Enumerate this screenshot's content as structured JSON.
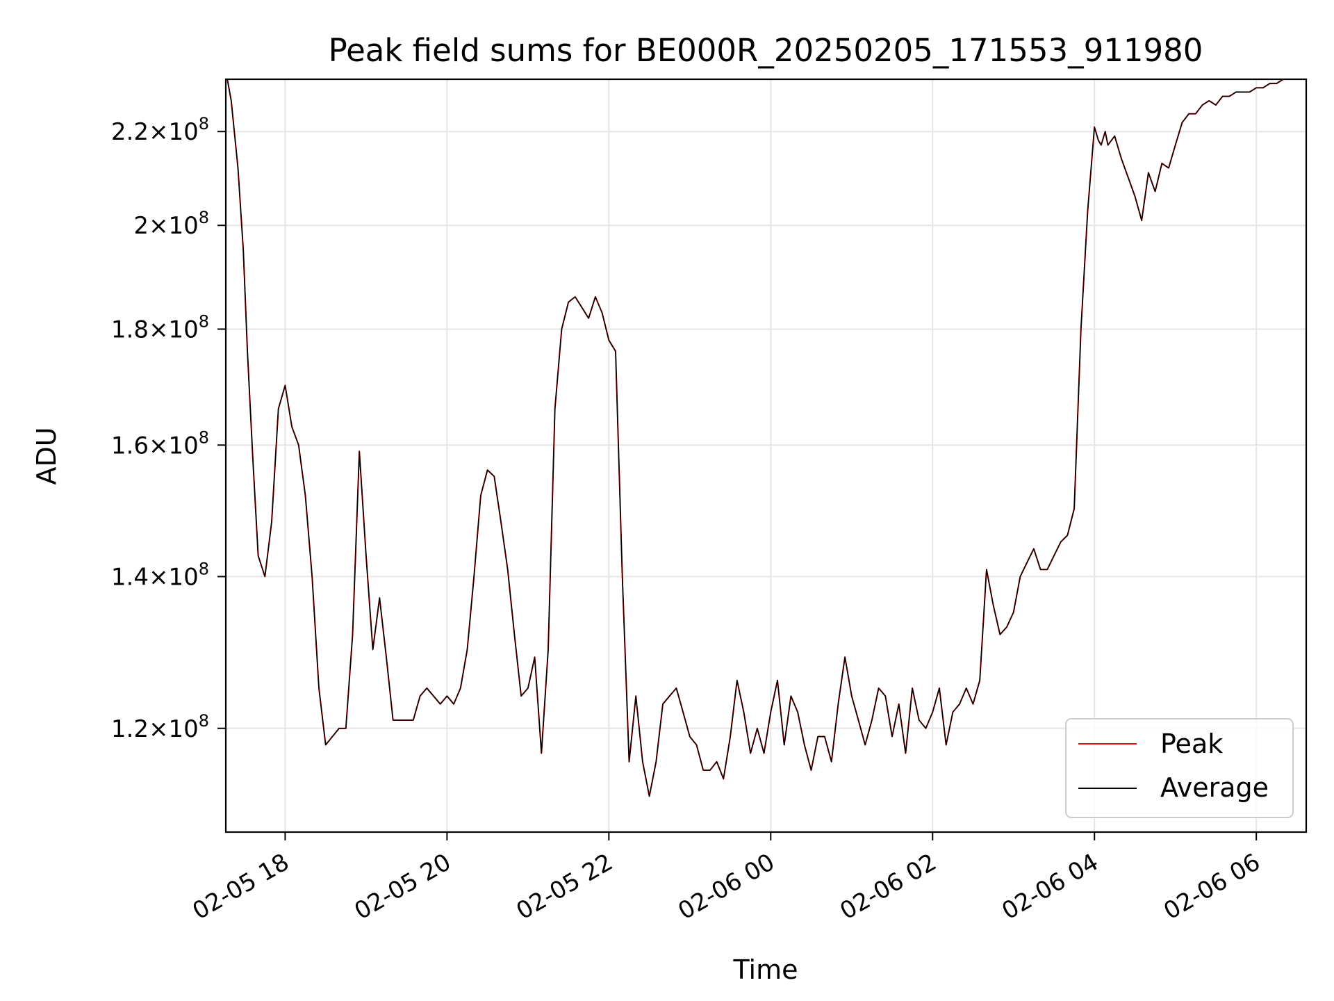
{
  "chart_data": {
    "type": "line",
    "title": "Peak field sums for BE000R_20250205_171553_911980",
    "xlabel": "Time",
    "ylabel": "ADU",
    "x_scale": "time",
    "y_scale": "log",
    "xlim": [
      "2025-02-05 17:16",
      "2025-02-06 06:37"
    ],
    "ylim": [
      108000000,
      232000000
    ],
    "x_ticks": [
      {
        "value": "2025-02-05 18:00",
        "label": "02-05 18"
      },
      {
        "value": "2025-02-05 20:00",
        "label": "02-05 20"
      },
      {
        "value": "2025-02-05 22:00",
        "label": "02-05 22"
      },
      {
        "value": "2025-02-06 00:00",
        "label": "02-06 00"
      },
      {
        "value": "2025-02-06 02:00",
        "label": "02-06 02"
      },
      {
        "value": "2025-02-06 04:00",
        "label": "02-06 04"
      },
      {
        "value": "2025-02-06 06:00",
        "label": "02-06 06"
      }
    ],
    "y_ticks": [
      {
        "value": 120000000,
        "mantissa": "1.2",
        "exponent": "8"
      },
      {
        "value": 140000000,
        "mantissa": "1.4",
        "exponent": "8"
      },
      {
        "value": 160000000,
        "mantissa": "1.6",
        "exponent": "8"
      },
      {
        "value": 180000000,
        "mantissa": "1.8",
        "exponent": "8"
      },
      {
        "value": 200000000,
        "mantissa": "2",
        "exponent": "8"
      },
      {
        "value": 220000000,
        "mantissa": "2.2",
        "exponent": "8"
      }
    ],
    "times_symbol": "×",
    "tick_base": "10",
    "grid": true,
    "legend_position": "lower right",
    "series": [
      {
        "name": "Peak",
        "color": "#ff0000"
      },
      {
        "name": "Average",
        "color": "#000000"
      }
    ],
    "x": [
      "2025-02-05 17:16",
      "2025-02-05 17:20",
      "2025-02-05 17:25",
      "2025-02-05 17:29",
      "2025-02-05 17:32",
      "2025-02-05 17:36",
      "2025-02-05 17:40",
      "2025-02-05 17:45",
      "2025-02-05 17:50",
      "2025-02-05 17:55",
      "2025-02-05 18:00",
      "2025-02-05 18:05",
      "2025-02-05 18:10",
      "2025-02-05 18:15",
      "2025-02-05 18:20",
      "2025-02-05 18:25",
      "2025-02-05 18:30",
      "2025-02-05 18:35",
      "2025-02-05 18:40",
      "2025-02-05 18:45",
      "2025-02-05 18:50",
      "2025-02-05 18:55",
      "2025-02-05 19:00",
      "2025-02-05 19:05",
      "2025-02-05 19:10",
      "2025-02-05 19:15",
      "2025-02-05 19:20",
      "2025-02-05 19:25",
      "2025-02-05 19:30",
      "2025-02-05 19:35",
      "2025-02-05 19:40",
      "2025-02-05 19:45",
      "2025-02-05 19:50",
      "2025-02-05 19:55",
      "2025-02-05 20:00",
      "2025-02-05 20:05",
      "2025-02-05 20:10",
      "2025-02-05 20:15",
      "2025-02-05 20:20",
      "2025-02-05 20:25",
      "2025-02-05 20:30",
      "2025-02-05 20:35",
      "2025-02-05 20:40",
      "2025-02-05 20:45",
      "2025-02-05 20:50",
      "2025-02-05 20:55",
      "2025-02-05 21:00",
      "2025-02-05 21:05",
      "2025-02-05 21:10",
      "2025-02-05 21:15",
      "2025-02-05 21:20",
      "2025-02-05 21:25",
      "2025-02-05 21:30",
      "2025-02-05 21:35",
      "2025-02-05 21:40",
      "2025-02-05 21:45",
      "2025-02-05 21:50",
      "2025-02-05 21:55",
      "2025-02-05 22:00",
      "2025-02-05 22:05",
      "2025-02-05 22:10",
      "2025-02-05 22:15",
      "2025-02-05 22:20",
      "2025-02-05 22:25",
      "2025-02-05 22:30",
      "2025-02-05 22:35",
      "2025-02-05 22:40",
      "2025-02-05 22:45",
      "2025-02-05 22:50",
      "2025-02-05 22:55",
      "2025-02-05 23:00",
      "2025-02-05 23:05",
      "2025-02-05 23:10",
      "2025-02-05 23:15",
      "2025-02-05 23:20",
      "2025-02-05 23:25",
      "2025-02-05 23:30",
      "2025-02-05 23:35",
      "2025-02-05 23:40",
      "2025-02-05 23:45",
      "2025-02-05 23:50",
      "2025-02-05 23:55",
      "2025-02-06 00:00",
      "2025-02-06 00:05",
      "2025-02-06 00:10",
      "2025-02-06 00:15",
      "2025-02-06 00:20",
      "2025-02-06 00:25",
      "2025-02-06 00:30",
      "2025-02-06 00:35",
      "2025-02-06 00:40",
      "2025-02-06 00:45",
      "2025-02-06 00:50",
      "2025-02-06 00:55",
      "2025-02-06 01:00",
      "2025-02-06 01:05",
      "2025-02-06 01:10",
      "2025-02-06 01:15",
      "2025-02-06 01:20",
      "2025-02-06 01:25",
      "2025-02-06 01:30",
      "2025-02-06 01:35",
      "2025-02-06 01:40",
      "2025-02-06 01:45",
      "2025-02-06 01:50",
      "2025-02-06 01:55",
      "2025-02-06 02:00",
      "2025-02-06 02:05",
      "2025-02-06 02:10",
      "2025-02-06 02:15",
      "2025-02-06 02:20",
      "2025-02-06 02:25",
      "2025-02-06 02:30",
      "2025-02-06 02:35",
      "2025-02-06 02:40",
      "2025-02-06 02:45",
      "2025-02-06 02:50",
      "2025-02-06 02:55",
      "2025-02-06 03:00",
      "2025-02-06 03:05",
      "2025-02-06 03:10",
      "2025-02-06 03:15",
      "2025-02-06 03:20",
      "2025-02-06 03:25",
      "2025-02-06 03:30",
      "2025-02-06 03:35",
      "2025-02-06 03:40",
      "2025-02-06 03:45",
      "2025-02-06 03:50",
      "2025-02-06 03:55",
      "2025-02-06 04:00",
      "2025-02-06 04:03",
      "2025-02-06 04:05",
      "2025-02-06 04:08",
      "2025-02-06 04:10",
      "2025-02-06 04:15",
      "2025-02-06 04:20",
      "2025-02-06 04:25",
      "2025-02-06 04:30",
      "2025-02-06 04:35",
      "2025-02-06 04:40",
      "2025-02-06 04:45",
      "2025-02-06 04:50",
      "2025-02-06 04:55",
      "2025-02-06 05:00",
      "2025-02-06 05:05",
      "2025-02-06 05:10",
      "2025-02-06 05:15",
      "2025-02-06 05:20",
      "2025-02-06 05:25",
      "2025-02-06 05:30",
      "2025-02-06 05:35",
      "2025-02-06 05:40",
      "2025-02-06 05:45",
      "2025-02-06 05:50",
      "2025-02-06 05:55",
      "2025-02-06 06:00",
      "2025-02-06 06:05",
      "2025-02-06 06:10",
      "2025-02-06 06:15",
      "2025-02-06 06:20",
      "2025-02-06 06:25",
      "2025-02-06 06:30",
      "2025-02-06 06:37"
    ],
    "values": [
      234000000,
      227000000,
      212000000,
      195000000,
      176000000,
      158000000,
      143000000,
      140000000,
      148000000,
      166000000,
      170000000,
      163000000,
      160000000,
      152000000,
      140000000,
      125000000,
      118000000,
      119000000,
      120000000,
      120000000,
      132000000,
      159000000,
      143000000,
      130000000,
      137000000,
      129000000,
      121000000,
      121000000,
      121000000,
      121000000,
      124000000,
      125000000,
      124000000,
      123000000,
      124000000,
      123000000,
      125000000,
      130000000,
      140000000,
      152000000,
      156000000,
      155000000,
      148000000,
      141000000,
      132000000,
      124000000,
      125000000,
      129000000,
      117000000,
      130000000,
      166000000,
      180000000,
      185000000,
      186000000,
      184000000,
      182000000,
      186000000,
      183000000,
      178000000,
      176000000,
      140000000,
      116000000,
      124000000,
      116000000,
      112000000,
      116000000,
      123000000,
      124000000,
      125000000,
      122000000,
      119000000,
      118000000,
      115000000,
      115000000,
      116000000,
      114000000,
      119000000,
      126000000,
      122000000,
      117000000,
      120000000,
      117000000,
      122000000,
      126000000,
      118000000,
      124000000,
      122000000,
      118000000,
      115000000,
      119000000,
      119000000,
      116000000,
      123000000,
      129000000,
      124000000,
      121000000,
      118000000,
      121000000,
      125000000,
      124000000,
      119000000,
      123000000,
      117000000,
      125000000,
      121000000,
      120000000,
      122000000,
      125000000,
      118000000,
      122000000,
      123000000,
      125000000,
      123000000,
      126000000,
      141000000,
      136000000,
      132000000,
      133000000,
      135000000,
      140000000,
      142000000,
      144000000,
      141000000,
      141000000,
      143000000,
      145000000,
      146000000,
      150000000,
      180000000,
      203000000,
      221000000,
      218000000,
      217000000,
      220000000,
      217000000,
      219000000,
      214000000,
      210000000,
      206000000,
      201000000,
      211000000,
      207000000,
      213000000,
      212000000,
      217000000,
      222000000,
      224000000,
      224000000,
      226000000,
      227000000,
      226000000,
      228000000,
      228000000,
      229000000,
      229000000,
      229000000,
      230000000,
      230000000,
      231000000,
      231000000,
      232000000,
      232000000,
      232000000,
      232000000
    ]
  }
}
